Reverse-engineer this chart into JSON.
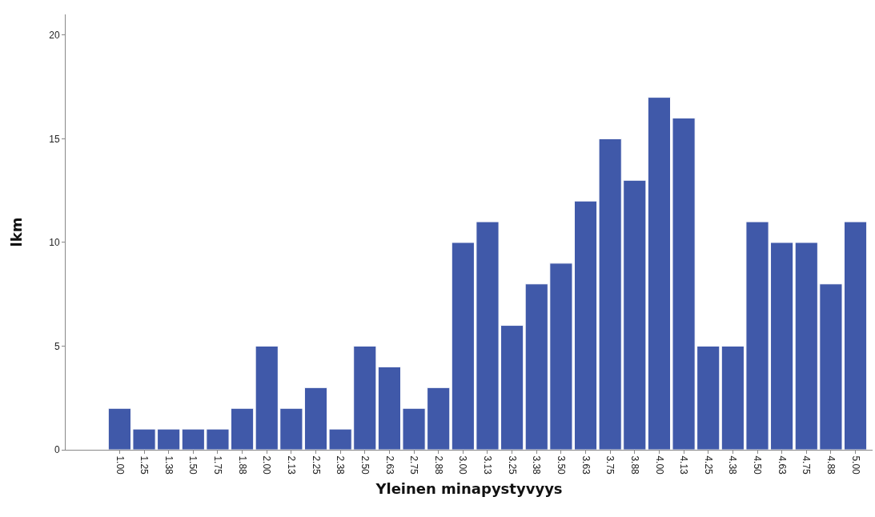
{
  "chart_data": {
    "type": "bar",
    "xlabel": "Yleinen minapystyvyys",
    "ylabel": "lkm",
    "categories": [
      "1.00",
      "1.25",
      "1.38",
      "1.50",
      "1.75",
      "1.88",
      "2.00",
      "2.13",
      "2.25",
      "2.38",
      "2.50",
      "2.63",
      "2.75",
      "2.88",
      "3.00",
      "3.13",
      "3.25",
      "3.38",
      "3.50",
      "3.63",
      "3.75",
      "3.88",
      "4.00",
      "4.13",
      "4.25",
      "4.38",
      "4.50",
      "4.63",
      "4.75",
      "4.88",
      "5.00"
    ],
    "values": [
      2,
      1,
      1,
      1,
      1,
      2,
      5,
      2,
      3,
      1,
      5,
      4,
      2,
      3,
      10,
      11,
      6,
      8,
      9,
      12,
      15,
      13,
      17,
      16,
      5,
      5,
      11,
      10,
      10,
      8,
      11
    ],
    "color": "#4059a9",
    "ylim": [
      0,
      21
    ],
    "yticks": [
      0,
      5,
      10,
      15,
      20
    ],
    "grid": false,
    "legend": false
  }
}
